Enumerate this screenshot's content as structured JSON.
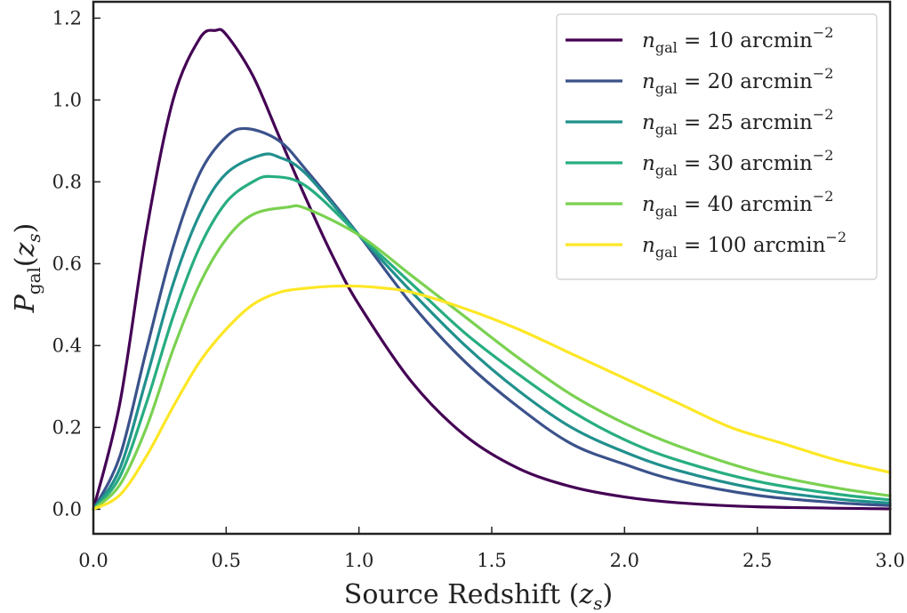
{
  "chart_data": {
    "type": "line",
    "title": "",
    "xlabel_main": "Source Redshift (",
    "xlabel_var": "z",
    "xlabel_sub": "s",
    "xlabel_close": ")",
    "ylabel_var": "P",
    "ylabel_sub": "gal",
    "ylabel_arg_open": "(",
    "ylabel_arg_var": "z",
    "ylabel_arg_sub": "s",
    "ylabel_arg_close": ")",
    "xlim": [
      0.0,
      3.0
    ],
    "ylim": [
      -0.06,
      1.24
    ],
    "xticks": [
      "0.0",
      "0.5",
      "1.0",
      "1.5",
      "2.0",
      "2.5",
      "3.0"
    ],
    "yticks": [
      "0.0",
      "0.2",
      "0.4",
      "0.6",
      "0.8",
      "1.0",
      "1.2"
    ],
    "legend_position": "top-right",
    "legend_prefix_var": "n",
    "legend_prefix_sub": "gal",
    "legend_eq": " = ",
    "legend_unit": " arcmin",
    "legend_exp": "−2",
    "series": [
      {
        "name": "10",
        "color": "#440154",
        "points": [
          [
            0.0,
            0.0
          ],
          [
            0.1,
            0.26
          ],
          [
            0.2,
            0.68
          ],
          [
            0.3,
            1.0
          ],
          [
            0.4,
            1.15
          ],
          [
            0.46,
            1.17
          ],
          [
            0.5,
            1.16
          ],
          [
            0.6,
            1.06
          ],
          [
            0.7,
            0.91
          ],
          [
            0.8,
            0.76
          ],
          [
            0.9,
            0.62
          ],
          [
            1.0,
            0.5
          ],
          [
            1.2,
            0.31
          ],
          [
            1.4,
            0.18
          ],
          [
            1.6,
            0.1
          ],
          [
            1.8,
            0.055
          ],
          [
            2.0,
            0.03
          ],
          [
            2.2,
            0.016
          ],
          [
            2.5,
            0.006
          ],
          [
            3.0,
            0.001
          ]
        ]
      },
      {
        "name": "20",
        "color": "#3b528b",
        "points": [
          [
            0.0,
            0.0
          ],
          [
            0.1,
            0.13
          ],
          [
            0.2,
            0.39
          ],
          [
            0.3,
            0.64
          ],
          [
            0.4,
            0.82
          ],
          [
            0.5,
            0.91
          ],
          [
            0.58,
            0.93
          ],
          [
            0.7,
            0.9
          ],
          [
            0.8,
            0.83
          ],
          [
            1.0,
            0.67
          ],
          [
            1.2,
            0.5
          ],
          [
            1.4,
            0.36
          ],
          [
            1.6,
            0.25
          ],
          [
            1.8,
            0.16
          ],
          [
            2.0,
            0.11
          ],
          [
            2.2,
            0.07
          ],
          [
            2.5,
            0.034
          ],
          [
            2.8,
            0.016
          ],
          [
            3.0,
            0.009
          ]
        ]
      },
      {
        "name": "25",
        "color": "#21908d",
        "points": [
          [
            0.0,
            0.0
          ],
          [
            0.1,
            0.1
          ],
          [
            0.2,
            0.32
          ],
          [
            0.3,
            0.55
          ],
          [
            0.4,
            0.72
          ],
          [
            0.5,
            0.82
          ],
          [
            0.63,
            0.865
          ],
          [
            0.7,
            0.86
          ],
          [
            0.8,
            0.82
          ],
          [
            1.0,
            0.67
          ],
          [
            1.2,
            0.53
          ],
          [
            1.4,
            0.4
          ],
          [
            1.6,
            0.29
          ],
          [
            1.8,
            0.2
          ],
          [
            2.0,
            0.14
          ],
          [
            2.2,
            0.095
          ],
          [
            2.5,
            0.05
          ],
          [
            2.8,
            0.025
          ],
          [
            3.0,
            0.015
          ]
        ]
      },
      {
        "name": "30",
        "color": "#27ad81",
        "points": [
          [
            0.0,
            0.0
          ],
          [
            0.1,
            0.08
          ],
          [
            0.2,
            0.26
          ],
          [
            0.3,
            0.47
          ],
          [
            0.4,
            0.64
          ],
          [
            0.5,
            0.75
          ],
          [
            0.6,
            0.8
          ],
          [
            0.67,
            0.813
          ],
          [
            0.8,
            0.79
          ],
          [
            1.0,
            0.67
          ],
          [
            1.2,
            0.55
          ],
          [
            1.4,
            0.43
          ],
          [
            1.6,
            0.33
          ],
          [
            1.8,
            0.24
          ],
          [
            2.0,
            0.17
          ],
          [
            2.2,
            0.12
          ],
          [
            2.5,
            0.068
          ],
          [
            2.8,
            0.037
          ],
          [
            3.0,
            0.023
          ]
        ]
      },
      {
        "name": "40",
        "color": "#7ad151",
        "points": [
          [
            0.0,
            0.0
          ],
          [
            0.1,
            0.06
          ],
          [
            0.2,
            0.2
          ],
          [
            0.3,
            0.39
          ],
          [
            0.4,
            0.55
          ],
          [
            0.5,
            0.66
          ],
          [
            0.6,
            0.72
          ],
          [
            0.73,
            0.738
          ],
          [
            0.8,
            0.735
          ],
          [
            1.0,
            0.67
          ],
          [
            1.2,
            0.57
          ],
          [
            1.4,
            0.47
          ],
          [
            1.6,
            0.37
          ],
          [
            1.8,
            0.28
          ],
          [
            2.0,
            0.21
          ],
          [
            2.2,
            0.155
          ],
          [
            2.5,
            0.092
          ],
          [
            2.8,
            0.052
          ],
          [
            3.0,
            0.033
          ]
        ]
      },
      {
        "name": "100",
        "color": "#fde725",
        "points": [
          [
            0.0,
            0.0
          ],
          [
            0.1,
            0.035
          ],
          [
            0.2,
            0.13
          ],
          [
            0.3,
            0.25
          ],
          [
            0.4,
            0.36
          ],
          [
            0.5,
            0.44
          ],
          [
            0.6,
            0.5
          ],
          [
            0.7,
            0.53
          ],
          [
            0.8,
            0.54
          ],
          [
            0.9,
            0.545
          ],
          [
            1.0,
            0.545
          ],
          [
            1.1,
            0.54
          ],
          [
            1.2,
            0.53
          ],
          [
            1.4,
            0.49
          ],
          [
            1.6,
            0.44
          ],
          [
            1.8,
            0.38
          ],
          [
            2.0,
            0.32
          ],
          [
            2.2,
            0.26
          ],
          [
            2.4,
            0.2
          ],
          [
            2.6,
            0.16
          ],
          [
            2.8,
            0.12
          ],
          [
            3.0,
            0.09
          ]
        ]
      }
    ]
  }
}
